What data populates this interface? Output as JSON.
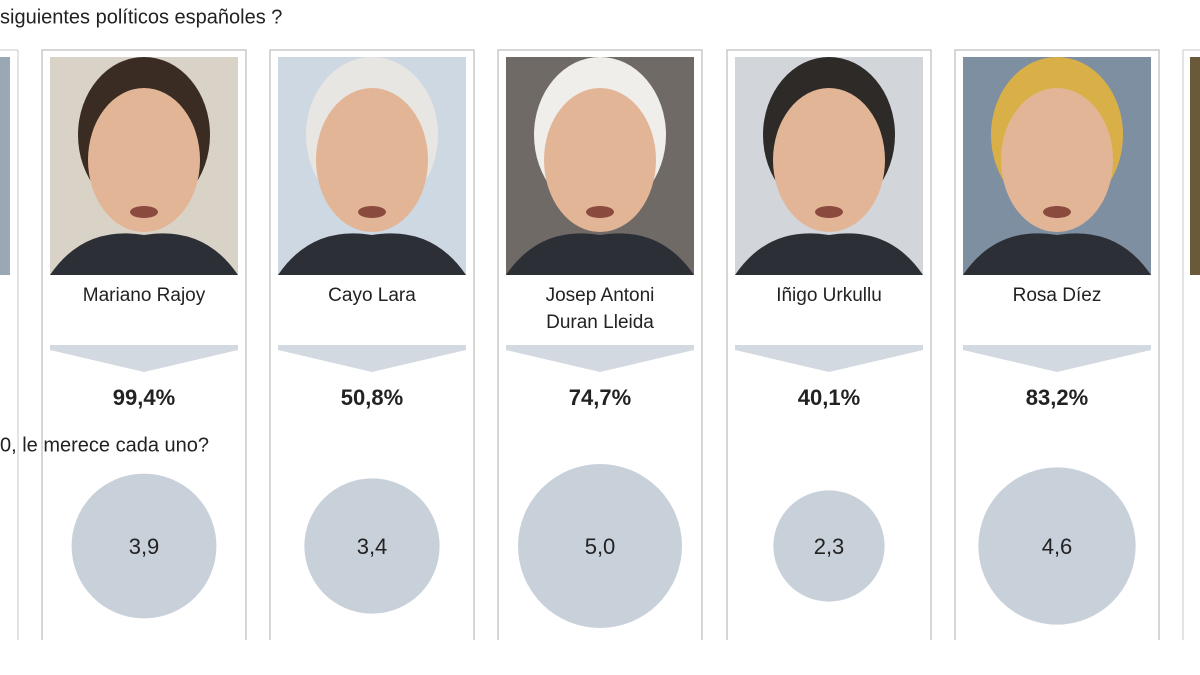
{
  "question_top": "siguientes políticos españoles ?",
  "question_score": "0, le merece cada uno?",
  "politicians": [
    {
      "name": [
        "Mariano Rajoy"
      ],
      "known": "99,4%",
      "score": 3.9,
      "score_label": "3,9"
    },
    {
      "name": [
        "Cayo Lara"
      ],
      "known": "50,8%",
      "score": 3.4,
      "score_label": "3,4"
    },
    {
      "name": [
        "Josep Antoni",
        "Duran Lleida"
      ],
      "known": "74,7%",
      "score": 5.0,
      "score_label": "5,0"
    },
    {
      "name": [
        "Iñigo Urkullu"
      ],
      "known": "40,1%",
      "score": 2.3,
      "score_label": "2,3"
    },
    {
      "name": [
        "Rosa Díez"
      ],
      "known": "83,2%",
      "score": 4.6,
      "score_label": "4,6"
    }
  ]
}
